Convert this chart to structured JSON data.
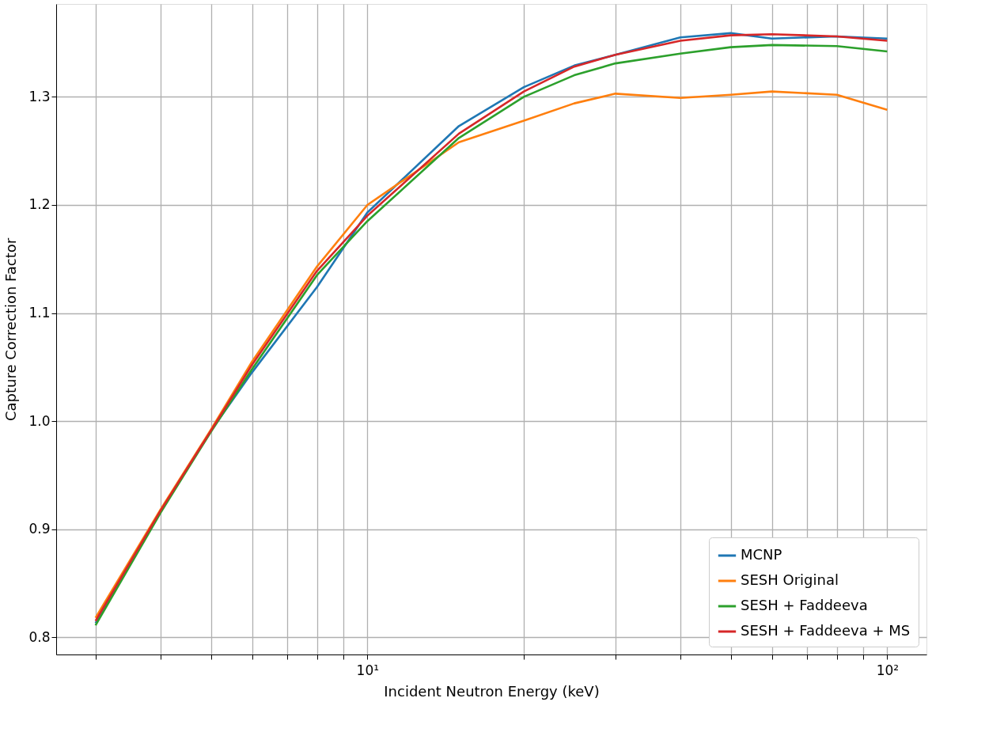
{
  "chart_data": {
    "type": "line",
    "xlabel": "Incident Neutron Energy (keV)",
    "ylabel": "Capture Correction Factor",
    "x": [
      3,
      4,
      5,
      6,
      8,
      10,
      15,
      20,
      25,
      30,
      40,
      50,
      60,
      80,
      100
    ],
    "series": [
      {
        "name": "MCNP",
        "color": "#1f77b4",
        "values": [
          0.813,
          0.917,
          0.991,
          1.045,
          1.124,
          1.193,
          1.273,
          1.309,
          1.329,
          1.339,
          1.355,
          1.359,
          1.354,
          1.356,
          1.354
        ]
      },
      {
        "name": "SESH Original",
        "color": "#ff7f0e",
        "values": [
          0.818,
          0.918,
          0.992,
          1.055,
          1.143,
          1.2,
          1.258,
          1.278,
          1.294,
          1.303,
          1.299,
          1.302,
          1.305,
          1.302,
          1.288
        ]
      },
      {
        "name": "SESH + Faddeeva",
        "color": "#2ca02c",
        "values": [
          0.811,
          0.915,
          0.99,
          1.048,
          1.135,
          1.185,
          1.262,
          1.3,
          1.32,
          1.331,
          1.34,
          1.346,
          1.348,
          1.347,
          1.342
        ]
      },
      {
        "name": "SESH + Faddeeva + MS",
        "color": "#d62728",
        "values": [
          0.815,
          0.917,
          0.991,
          1.052,
          1.139,
          1.19,
          1.266,
          1.305,
          1.328,
          1.339,
          1.352,
          1.357,
          1.358,
          1.356,
          1.352
        ]
      }
    ],
    "log": "x",
    "xlim": [
      2.52,
      119
    ],
    "xticks": [
      {
        "value": 3,
        "label": null
      },
      {
        "value": 4,
        "label": null
      },
      {
        "value": 5,
        "label": null
      },
      {
        "value": 6,
        "label": null
      },
      {
        "value": 7,
        "label": null
      },
      {
        "value": 8,
        "label": null
      },
      {
        "value": 9,
        "label": null
      },
      {
        "value": 10,
        "label": "10¹"
      },
      {
        "value": 20,
        "label": null
      },
      {
        "value": 30,
        "label": null
      },
      {
        "value": 40,
        "label": null
      },
      {
        "value": 50,
        "label": null
      },
      {
        "value": 60,
        "label": null
      },
      {
        "value": 70,
        "label": null
      },
      {
        "value": 80,
        "label": null
      },
      {
        "value": 90,
        "label": null
      },
      {
        "value": 100,
        "label": "10²"
      }
    ],
    "ylim": [
      0.784,
      1.386
    ],
    "yticks": [
      0.8,
      0.9,
      {
        "value": 1,
        "label": "1.0"
      },
      1.1,
      1.2,
      1.3
    ],
    "grid": true,
    "legend": "bottom right",
    "marker": "none",
    "line_style": "solid"
  }
}
